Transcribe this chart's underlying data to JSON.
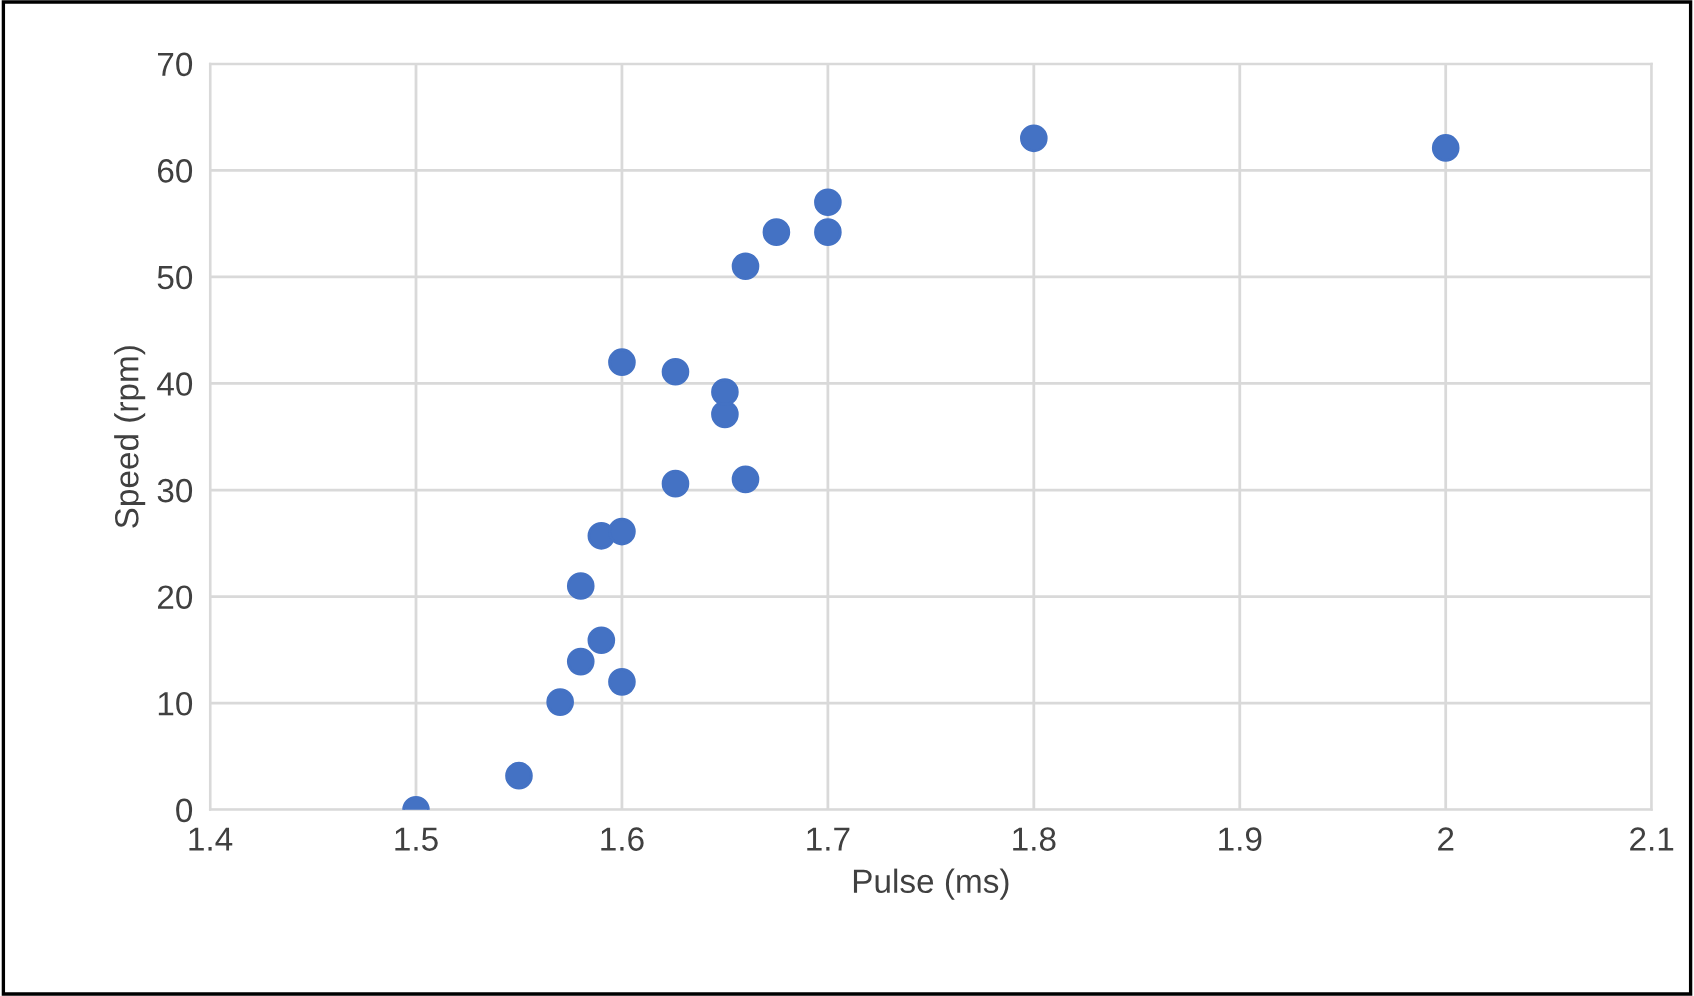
{
  "chart_data": {
    "type": "scatter",
    "xlabel": "Pulse (ms)",
    "ylabel": "Speed (rpm)",
    "x": [
      1.5,
      1.55,
      1.57,
      1.58,
      1.6,
      1.59,
      1.58,
      1.59,
      1.6,
      1.626,
      1.66,
      1.65,
      1.65,
      1.626,
      1.6,
      1.66,
      1.675,
      1.7,
      1.7,
      1.8,
      2.0
    ],
    "series": [
      {
        "color": "#4472c4",
        "values": [
          0,
          3.2,
          10.1,
          13.9,
          12.0,
          15.9,
          21.0,
          25.7,
          26.1,
          30.6,
          31.0,
          37.1,
          39.2,
          41.1,
          42.0,
          51.0,
          54.2,
          54.2,
          57.0,
          63.0,
          62.1
        ]
      }
    ],
    "xlim": [
      1.4,
      2.1
    ],
    "xticks": [
      1.4,
      1.5,
      1.6,
      1.7,
      1.8,
      1.9,
      2,
      2.1
    ],
    "ylim": [
      0,
      70
    ],
    "yticks": [
      0,
      10,
      20,
      30,
      40,
      50,
      60,
      70
    ],
    "grid": true,
    "marker": "circle"
  }
}
